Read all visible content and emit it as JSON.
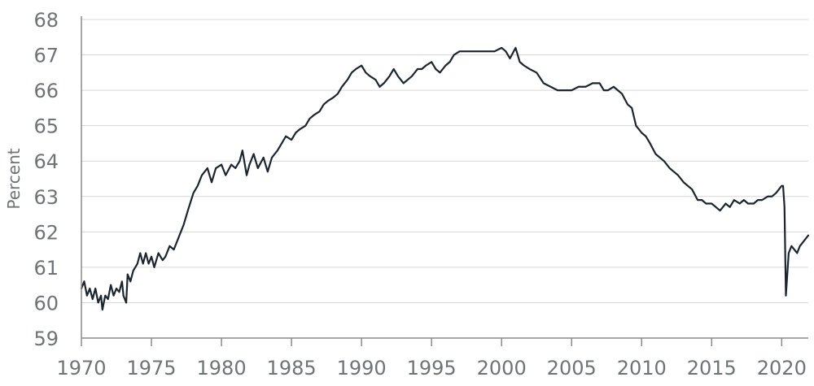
{
  "chart_data": {
    "type": "line",
    "title": "",
    "xlabel": "",
    "ylabel": "Percent",
    "xlim": [
      1970,
      2021.9
    ],
    "ylim": [
      59,
      68
    ],
    "x_ticks": [
      1970,
      1975,
      1980,
      1985,
      1990,
      1995,
      2000,
      2005,
      2010,
      2015,
      2020
    ],
    "y_ticks": [
      59,
      60,
      61,
      62,
      63,
      64,
      65,
      66,
      67,
      68
    ],
    "grid": "horizontal",
    "legend": "none",
    "colors": {
      "line": "#1b2530",
      "grid": "#d6d6d6",
      "axis": "#8a8a8a",
      "text": "#6e7378"
    },
    "series": [
      {
        "values": [
          [
            1970.0,
            60.4
          ],
          [
            1970.2,
            60.6
          ],
          [
            1970.4,
            60.2
          ],
          [
            1970.6,
            60.4
          ],
          [
            1970.8,
            60.1
          ],
          [
            1971.0,
            60.4
          ],
          [
            1971.2,
            60.0
          ],
          [
            1971.4,
            60.2
          ],
          [
            1971.5,
            59.8
          ],
          [
            1971.7,
            60.2
          ],
          [
            1971.9,
            60.1
          ],
          [
            1972.1,
            60.5
          ],
          [
            1972.3,
            60.2
          ],
          [
            1972.5,
            60.4
          ],
          [
            1972.7,
            60.3
          ],
          [
            1972.9,
            60.6
          ],
          [
            1973.0,
            60.2
          ],
          [
            1973.2,
            60.0
          ],
          [
            1973.3,
            60.8
          ],
          [
            1973.5,
            60.6
          ],
          [
            1973.7,
            60.9
          ],
          [
            1974.0,
            61.1
          ],
          [
            1974.2,
            61.4
          ],
          [
            1974.4,
            61.1
          ],
          [
            1974.6,
            61.4
          ],
          [
            1974.8,
            61.1
          ],
          [
            1975.0,
            61.3
          ],
          [
            1975.2,
            61.0
          ],
          [
            1975.5,
            61.4
          ],
          [
            1975.8,
            61.2
          ],
          [
            1976.0,
            61.3
          ],
          [
            1976.3,
            61.6
          ],
          [
            1976.6,
            61.5
          ],
          [
            1977.0,
            61.9
          ],
          [
            1977.3,
            62.2
          ],
          [
            1977.6,
            62.6
          ],
          [
            1978.0,
            63.1
          ],
          [
            1978.3,
            63.3
          ],
          [
            1978.6,
            63.6
          ],
          [
            1979.0,
            63.8
          ],
          [
            1979.3,
            63.4
          ],
          [
            1979.6,
            63.8
          ],
          [
            1980.0,
            63.9
          ],
          [
            1980.3,
            63.6
          ],
          [
            1980.7,
            63.9
          ],
          [
            1981.0,
            63.8
          ],
          [
            1981.3,
            64.0
          ],
          [
            1981.5,
            64.3
          ],
          [
            1981.8,
            63.6
          ],
          [
            1982.0,
            63.9
          ],
          [
            1982.3,
            64.2
          ],
          [
            1982.6,
            63.8
          ],
          [
            1983.0,
            64.1
          ],
          [
            1983.3,
            63.7
          ],
          [
            1983.6,
            64.1
          ],
          [
            1984.0,
            64.3
          ],
          [
            1984.3,
            64.5
          ],
          [
            1984.6,
            64.7
          ],
          [
            1985.0,
            64.6
          ],
          [
            1985.3,
            64.8
          ],
          [
            1985.6,
            64.9
          ],
          [
            1986.0,
            65.0
          ],
          [
            1986.3,
            65.2
          ],
          [
            1986.6,
            65.3
          ],
          [
            1987.0,
            65.4
          ],
          [
            1987.3,
            65.6
          ],
          [
            1987.6,
            65.7
          ],
          [
            1988.0,
            65.8
          ],
          [
            1988.3,
            65.9
          ],
          [
            1988.6,
            66.1
          ],
          [
            1989.0,
            66.3
          ],
          [
            1989.3,
            66.5
          ],
          [
            1989.6,
            66.6
          ],
          [
            1990.0,
            66.7
          ],
          [
            1990.3,
            66.5
          ],
          [
            1990.6,
            66.4
          ],
          [
            1991.0,
            66.3
          ],
          [
            1991.3,
            66.1
          ],
          [
            1991.6,
            66.2
          ],
          [
            1992.0,
            66.4
          ],
          [
            1992.3,
            66.6
          ],
          [
            1992.6,
            66.4
          ],
          [
            1993.0,
            66.2
          ],
          [
            1993.3,
            66.3
          ],
          [
            1993.6,
            66.4
          ],
          [
            1994.0,
            66.6
          ],
          [
            1994.3,
            66.6
          ],
          [
            1994.6,
            66.7
          ],
          [
            1995.0,
            66.8
          ],
          [
            1995.3,
            66.6
          ],
          [
            1995.6,
            66.5
          ],
          [
            1996.0,
            66.7
          ],
          [
            1996.3,
            66.8
          ],
          [
            1996.6,
            67.0
          ],
          [
            1997.0,
            67.1
          ],
          [
            1997.5,
            67.1
          ],
          [
            1998.0,
            67.1
          ],
          [
            1998.5,
            67.1
          ],
          [
            1999.0,
            67.1
          ],
          [
            1999.5,
            67.1
          ],
          [
            2000.0,
            67.2
          ],
          [
            2000.3,
            67.1
          ],
          [
            2000.6,
            66.9
          ],
          [
            2001.0,
            67.2
          ],
          [
            2001.3,
            66.8
          ],
          [
            2001.6,
            66.7
          ],
          [
            2002.0,
            66.6
          ],
          [
            2002.5,
            66.5
          ],
          [
            2003.0,
            66.2
          ],
          [
            2003.5,
            66.1
          ],
          [
            2004.0,
            66.0
          ],
          [
            2004.5,
            66.0
          ],
          [
            2005.0,
            66.0
          ],
          [
            2005.5,
            66.1
          ],
          [
            2006.0,
            66.1
          ],
          [
            2006.5,
            66.2
          ],
          [
            2007.0,
            66.2
          ],
          [
            2007.3,
            66.0
          ],
          [
            2007.6,
            66.0
          ],
          [
            2008.0,
            66.1
          ],
          [
            2008.3,
            66.0
          ],
          [
            2008.6,
            65.9
          ],
          [
            2009.0,
            65.6
          ],
          [
            2009.3,
            65.5
          ],
          [
            2009.6,
            65.0
          ],
          [
            2010.0,
            64.8
          ],
          [
            2010.3,
            64.7
          ],
          [
            2010.6,
            64.5
          ],
          [
            2011.0,
            64.2
          ],
          [
            2011.3,
            64.1
          ],
          [
            2011.6,
            64.0
          ],
          [
            2012.0,
            63.8
          ],
          [
            2012.3,
            63.7
          ],
          [
            2012.6,
            63.6
          ],
          [
            2013.0,
            63.4
          ],
          [
            2013.3,
            63.3
          ],
          [
            2013.6,
            63.2
          ],
          [
            2014.0,
            62.9
          ],
          [
            2014.3,
            62.9
          ],
          [
            2014.6,
            62.8
          ],
          [
            2015.0,
            62.8
          ],
          [
            2015.3,
            62.7
          ],
          [
            2015.6,
            62.6
          ],
          [
            2016.0,
            62.8
          ],
          [
            2016.3,
            62.7
          ],
          [
            2016.6,
            62.9
          ],
          [
            2017.0,
            62.8
          ],
          [
            2017.3,
            62.9
          ],
          [
            2017.6,
            62.8
          ],
          [
            2018.0,
            62.8
          ],
          [
            2018.3,
            62.9
          ],
          [
            2018.6,
            62.9
          ],
          [
            2019.0,
            63.0
          ],
          [
            2019.3,
            63.0
          ],
          [
            2019.6,
            63.1
          ],
          [
            2020.0,
            63.3
          ],
          [
            2020.1,
            63.3
          ],
          [
            2020.2,
            62.7
          ],
          [
            2020.3,
            60.2
          ],
          [
            2020.5,
            61.4
          ],
          [
            2020.7,
            61.6
          ],
          [
            2020.9,
            61.5
          ],
          [
            2021.1,
            61.4
          ],
          [
            2021.3,
            61.6
          ],
          [
            2021.5,
            61.7
          ],
          [
            2021.7,
            61.8
          ],
          [
            2021.9,
            61.9
          ]
        ]
      }
    ]
  }
}
